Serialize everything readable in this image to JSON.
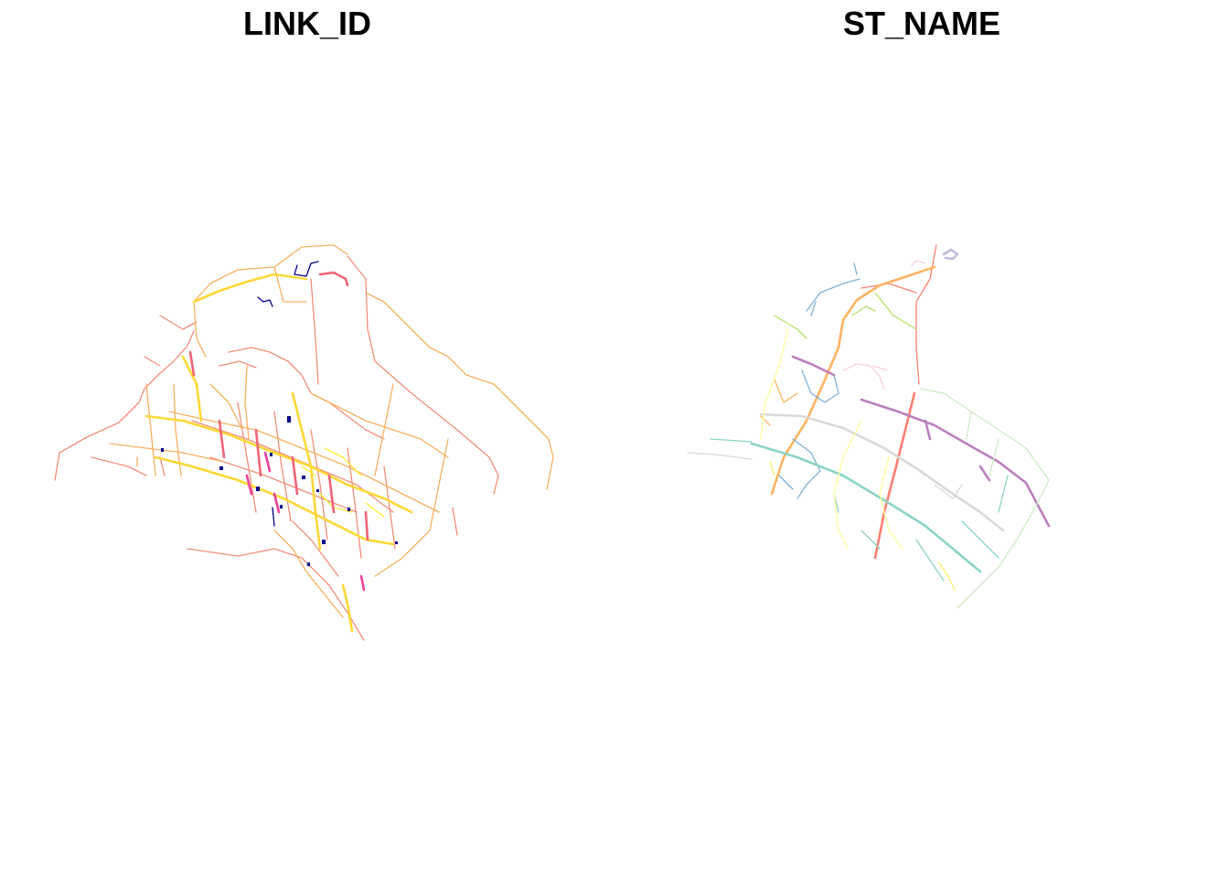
{
  "maps": [
    {
      "title": "LINK_ID"
    },
    {
      "title": "ST_NAME"
    }
  ],
  "colors": {
    "background": "#ffffff",
    "link_id_palette": [
      "#f28e79",
      "#f7b060",
      "#fdd835",
      "#ffee33",
      "#f06478",
      "#e8449a",
      "#00008b"
    ],
    "st_name_palette": [
      "#8dd3c7",
      "#ffff99",
      "#bebada",
      "#fb8072",
      "#80b1d3",
      "#fdb462",
      "#b3de69",
      "#fccde5",
      "#d9d9d9",
      "#bc80bd",
      "#ccebc5",
      "#ffed6f"
    ]
  }
}
